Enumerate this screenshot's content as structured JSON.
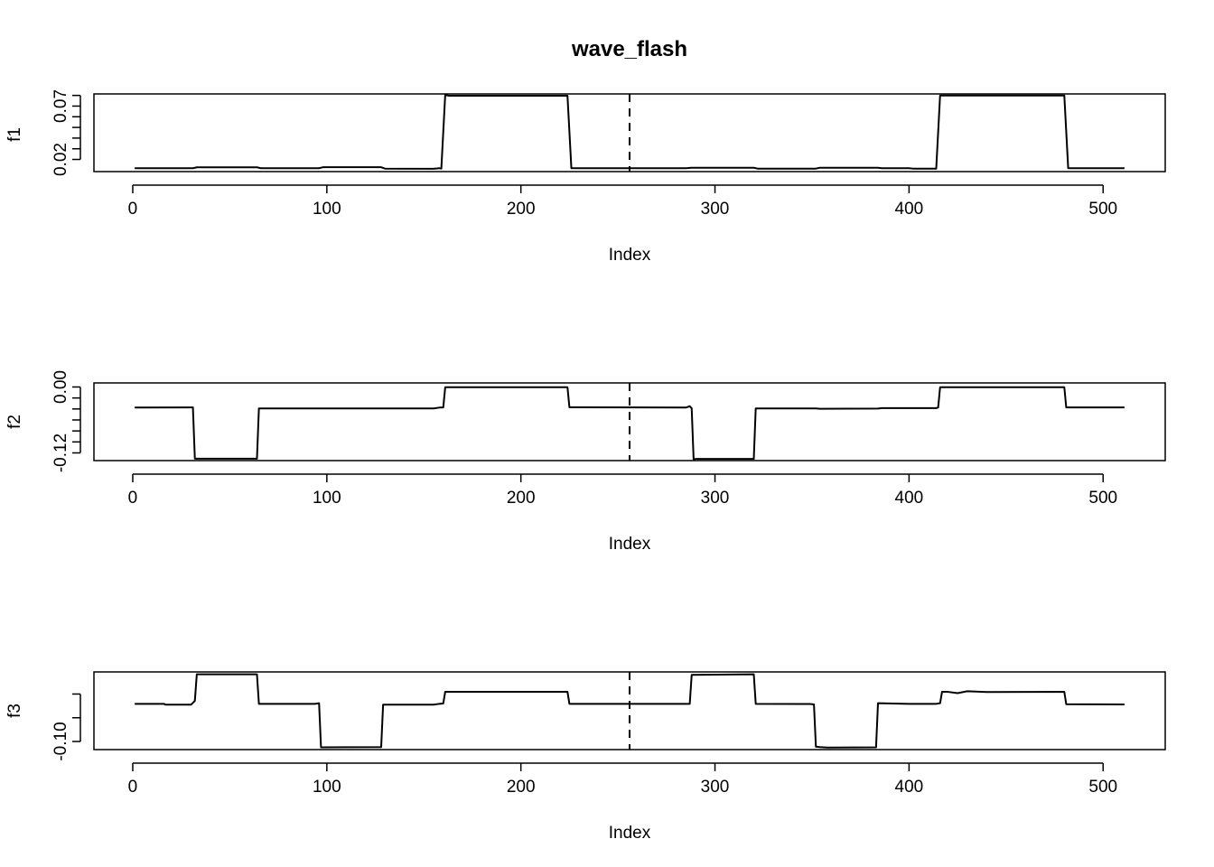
{
  "chart_data": {
    "type": "line",
    "title": "wave_flash",
    "panels": [
      {
        "ylabel": "f1",
        "xlabel": "Index",
        "xlim": [
          -20,
          532
        ],
        "ylim": [
          0.0086,
          0.0814
        ],
        "xticks": [
          0,
          100,
          200,
          300,
          400,
          500
        ],
        "yticks": [
          0.02,
          0.03,
          0.04,
          0.05,
          0.06,
          0.07,
          0.08
        ],
        "ytick_labels": {
          "0.02": "0.02",
          "0.07": "0.07"
        },
        "vline": 256,
        "line": "solid",
        "points": [
          [
            1,
            0.0118
          ],
          [
            31,
            0.0118
          ],
          [
            33,
            0.0126
          ],
          [
            64,
            0.0126
          ],
          [
            66,
            0.0118
          ],
          [
            96,
            0.0118
          ],
          [
            98,
            0.0127
          ],
          [
            128,
            0.0127
          ],
          [
            130,
            0.0114
          ],
          [
            155,
            0.0112
          ],
          [
            158,
            0.0118
          ],
          [
            159,
            0.0114
          ],
          [
            161,
            0.0804
          ],
          [
            163,
            0.0797
          ],
          [
            224,
            0.0797
          ],
          [
            226,
            0.0118
          ],
          [
            285,
            0.0118
          ],
          [
            288,
            0.0122
          ],
          [
            320,
            0.0122
          ],
          [
            322,
            0.0114
          ],
          [
            352,
            0.0114
          ],
          [
            354,
            0.0122
          ],
          [
            384,
            0.0122
          ],
          [
            386,
            0.0118
          ],
          [
            400,
            0.0118
          ],
          [
            402,
            0.0114
          ],
          [
            414,
            0.0114
          ],
          [
            416,
            0.0799
          ],
          [
            480,
            0.0799
          ],
          [
            482,
            0.0118
          ],
          [
            511,
            0.0118
          ]
        ]
      },
      {
        "ylabel": "f2",
        "xlabel": "Index",
        "xlim": [
          -20,
          532
        ],
        "ylim": [
          -0.134,
          0.0074
        ],
        "xticks": [
          0,
          100,
          200,
          300,
          400,
          500
        ],
        "yticks": [
          -0.12,
          -0.1,
          -0.08,
          -0.06,
          -0.04,
          -0.02,
          0.0
        ],
        "ytick_labels": {
          "-0.12": "-0.12",
          "0.00": "0.00"
        },
        "vline": 256,
        "line": "solid",
        "points": [
          [
            1,
            -0.0375
          ],
          [
            30,
            -0.0372
          ],
          [
            31,
            -0.0372
          ],
          [
            32,
            -0.1305
          ],
          [
            64,
            -0.1305
          ],
          [
            65,
            -0.039
          ],
          [
            155,
            -0.039
          ],
          [
            158,
            -0.0375
          ],
          [
            160,
            -0.0372
          ],
          [
            161,
            -0.0005
          ],
          [
            163,
            -0.0005
          ],
          [
            224,
            -0.0005
          ],
          [
            225,
            -0.037
          ],
          [
            260,
            -0.0372
          ],
          [
            285,
            -0.0375
          ],
          [
            287,
            -0.035
          ],
          [
            288,
            -0.039
          ],
          [
            289,
            -0.1318
          ],
          [
            290,
            -0.131
          ],
          [
            320,
            -0.131
          ],
          [
            321,
            -0.039
          ],
          [
            352,
            -0.039
          ],
          [
            354,
            -0.0397
          ],
          [
            384,
            -0.0393
          ],
          [
            386,
            -0.0385
          ],
          [
            414,
            -0.0385
          ],
          [
            415,
            -0.0372
          ],
          [
            416,
            -0.0005
          ],
          [
            450,
            -0.0005
          ],
          [
            480,
            -0.0005
          ],
          [
            481,
            -0.0372
          ],
          [
            511,
            -0.0372
          ]
        ]
      },
      {
        "ylabel": "f3",
        "xlabel": "Index",
        "xlim": [
          -20,
          532
        ],
        "ylim": [
          -0.1137,
          0.0173
        ],
        "xticks": [
          0,
          100,
          200,
          300,
          400,
          500
        ],
        "yticks": [
          -0.1,
          -0.06,
          -0.02
        ],
        "ytick_labels": {
          "-0.10": "-0.10",
          "-0.06": "",
          "-0.02": ""
        },
        "vline": 256,
        "line": "solid",
        "points": [
          [
            1,
            -0.0365
          ],
          [
            16,
            -0.0365
          ],
          [
            17,
            -0.038
          ],
          [
            30,
            -0.038
          ],
          [
            32,
            -0.0315
          ],
          [
            33,
            0.0133
          ],
          [
            64,
            0.0133
          ],
          [
            65,
            -0.0365
          ],
          [
            94,
            -0.0365
          ],
          [
            96,
            -0.0355
          ],
          [
            97,
            -0.1098
          ],
          [
            128,
            -0.1095
          ],
          [
            129,
            -0.038
          ],
          [
            155,
            -0.038
          ],
          [
            158,
            -0.0365
          ],
          [
            160,
            -0.0358
          ],
          [
            161,
            -0.0163
          ],
          [
            224,
            -0.0163
          ],
          [
            225,
            -0.0365
          ],
          [
            287,
            -0.0365
          ],
          [
            288,
            0.0123
          ],
          [
            320,
            0.0133
          ],
          [
            321,
            -0.0365
          ],
          [
            349,
            -0.0368
          ],
          [
            351,
            -0.0375
          ],
          [
            352,
            -0.1088
          ],
          [
            354,
            -0.1095
          ],
          [
            358,
            -0.1102
          ],
          [
            383,
            -0.1098
          ],
          [
            384,
            -0.0355
          ],
          [
            400,
            -0.0365
          ],
          [
            414,
            -0.0365
          ],
          [
            416,
            -0.0355
          ],
          [
            417,
            -0.0163
          ],
          [
            420,
            -0.0163
          ],
          [
            425,
            -0.0185
          ],
          [
            430,
            -0.0152
          ],
          [
            440,
            -0.0165
          ],
          [
            480,
            -0.0163
          ],
          [
            481,
            -0.0372
          ],
          [
            511,
            -0.0375
          ]
        ]
      }
    ]
  }
}
